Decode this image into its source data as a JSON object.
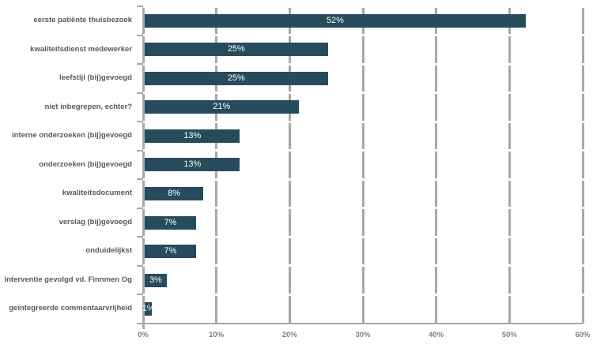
{
  "chart_data": {
    "type": "bar",
    "orientation": "horizontal",
    "title": "",
    "xlabel": "",
    "ylabel": "",
    "xlim": [
      0,
      60
    ],
    "x_ticks": [
      "0%",
      "10%",
      "20%",
      "30%",
      "40%",
      "50%",
      "60%"
    ],
    "grid": "vertical-major-gray, horizontal-white-row-separators",
    "legend": "none",
    "categories": [
      "eerste patiënte thuisbezoek",
      "kwaliteitsdienst medewerker",
      "leefstijl (bij)gevoegd",
      "niet inbegrepen, echter?",
      "interne onderzoeken (bij)gevoegd",
      "onderzoeken (bij)gevoegd",
      "kwaliteitsdocument",
      "verslag (bij)gevoegd",
      "onduidelijkst",
      "interventie gevolgd vd. Finnmen Og",
      "geïntegreerde commentaarvrijheid"
    ],
    "values": [
      52,
      25,
      25,
      21,
      13,
      13,
      8,
      7,
      7,
      3,
      1
    ],
    "value_labels": [
      "52%",
      "25%",
      "25%",
      "21%",
      "13%",
      "13%",
      "8%",
      "7%",
      "7%",
      "3%",
      "1%"
    ],
    "colors": {
      "bar": "#264b5a",
      "value_label": "#ffffff",
      "category_label": "#595959",
      "axis_tick_label": "#7f7f7f",
      "vertical_grid": "#a8a8a8",
      "row_separator": "#ffffff",
      "background": "#ffffff"
    }
  }
}
